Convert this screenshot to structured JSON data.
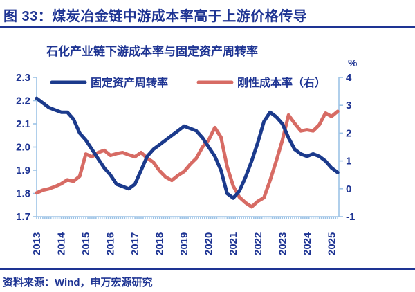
{
  "figure": {
    "title": "图 33：煤炭冶金链中游成本率高于上游价格传导",
    "source": "资料来源：Wind，申万宏源研究"
  },
  "colors": {
    "navy_text": "#1e3493",
    "line_blue": "#1b3a8c",
    "line_red": "#d76b64",
    "axis_blue": "#9dc3e6"
  },
  "chart_data": {
    "type": "line",
    "title": "石化产业链下游成本率与固定资产周转率",
    "right_axis_unit": "%",
    "grid": false,
    "legend_position": "top",
    "x_tick_years": [
      "2013",
      "2014",
      "2015",
      "2016",
      "2017",
      "2018",
      "2019",
      "2020",
      "2021",
      "2022",
      "2023",
      "2024",
      "2025"
    ],
    "left_axis": {
      "min": 1.7,
      "max": 2.3,
      "ticks": [
        "2.3",
        "2.2",
        "2.1",
        "2.0",
        "1.9",
        "1.8",
        "1.7"
      ]
    },
    "right_axis": {
      "min": -1,
      "max": 4,
      "ticks": [
        "4",
        "3",
        "2",
        "1",
        "0",
        "-1"
      ]
    },
    "x": [
      2013.0,
      2013.25,
      2013.5,
      2013.75,
      2014.0,
      2014.25,
      2014.5,
      2014.75,
      2015.0,
      2015.25,
      2015.5,
      2015.75,
      2016.0,
      2016.25,
      2016.5,
      2016.75,
      2017.0,
      2017.25,
      2017.5,
      2017.75,
      2018.0,
      2018.25,
      2018.5,
      2018.75,
      2019.0,
      2019.25,
      2019.5,
      2019.75,
      2020.0,
      2020.25,
      2020.5,
      2020.75,
      2021.0,
      2021.25,
      2021.5,
      2021.75,
      2022.0,
      2022.25,
      2022.5,
      2022.75,
      2023.0,
      2023.25,
      2023.5,
      2023.75,
      2024.0,
      2024.25,
      2024.5,
      2024.75,
      2025.0,
      2025.25
    ],
    "series": [
      {
        "name": "固定资产周转率",
        "axis": "left",
        "color": "#1b3a8c",
        "values": [
          2.21,
          2.19,
          2.17,
          2.16,
          2.15,
          2.15,
          2.12,
          2.06,
          2.03,
          1.99,
          1.95,
          1.91,
          1.88,
          1.84,
          1.83,
          1.82,
          1.84,
          1.9,
          1.96,
          1.99,
          2.01,
          2.03,
          2.05,
          2.07,
          2.09,
          2.08,
          2.07,
          2.04,
          2.0,
          1.96,
          1.9,
          1.8,
          1.78,
          1.81,
          1.87,
          1.94,
          2.02,
          2.11,
          2.15,
          2.13,
          2.1,
          2.04,
          1.99,
          1.97,
          1.96,
          1.97,
          1.96,
          1.94,
          1.91,
          1.89
        ]
      },
      {
        "name": "刚性成本率（右）",
        "axis": "right",
        "color": "#d76b64",
        "values": [
          -0.15,
          -0.05,
          0.0,
          0.08,
          0.18,
          0.32,
          0.27,
          0.45,
          1.25,
          1.15,
          1.3,
          1.38,
          1.2,
          1.26,
          1.3,
          1.22,
          1.15,
          1.3,
          1.1,
          0.95,
          0.65,
          0.42,
          0.3,
          0.48,
          0.62,
          0.88,
          1.1,
          1.5,
          1.75,
          2.2,
          1.85,
          0.8,
          0.1,
          -0.3,
          -0.5,
          -0.65,
          -0.45,
          -0.32,
          0.3,
          1.0,
          1.75,
          2.65,
          2.35,
          2.08,
          2.12,
          2.08,
          2.3,
          2.72,
          2.6,
          2.78
        ]
      }
    ]
  }
}
